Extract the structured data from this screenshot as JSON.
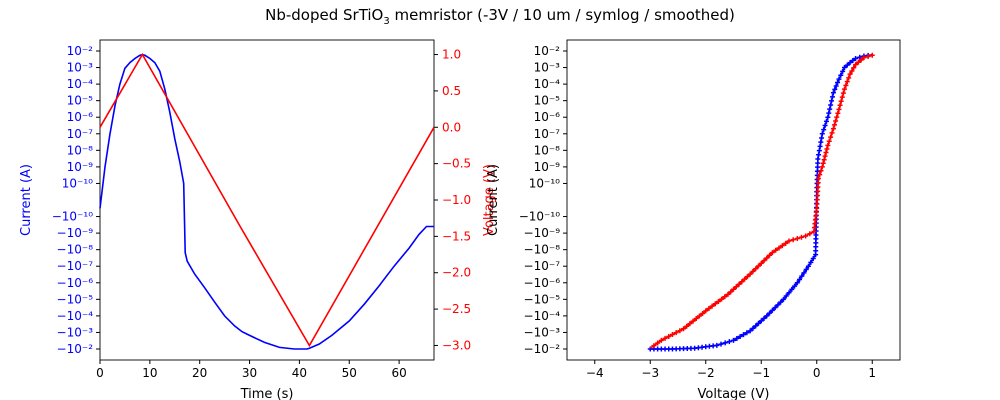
{
  "figure": {
    "title_main": "Nb-doped SrTiO",
    "title_sub": "3",
    "title_rest": " memristor (-3V / 10 um / symlog / smoothed)"
  },
  "colors": {
    "current": "#0000ff",
    "voltage": "#ff0000",
    "axis": "#000000"
  },
  "chart_data": [
    {
      "type": "line",
      "title": "",
      "xlabel": "Time (s)",
      "ylabel_left": "Current (A)",
      "ylabel_right": "Voltage (V)",
      "xlim": [
        0,
        67
      ],
      "xticks": [
        "0",
        "10",
        "20",
        "30",
        "40",
        "50",
        "60"
      ],
      "y_left_scale": "symlog",
      "y_left_ticks": [
        "10⁻²",
        "10⁻³",
        "10⁻⁴",
        "10⁻⁵",
        "10⁻⁶",
        "10⁻⁷",
        "10⁻⁸",
        "10⁻⁹",
        "10⁻¹⁰",
        "−10⁻¹⁰",
        "−10⁻⁹",
        "−10⁻⁸",
        "−10⁻⁷",
        "−10⁻⁶",
        "−10⁻⁵",
        "−10⁻⁴",
        "−10⁻³",
        "−10⁻²"
      ],
      "y_right_lim": [
        -3.2,
        1.2
      ],
      "y_right_ticks": [
        "1.0",
        "0.5",
        "0.0",
        "−0.5",
        "−1.0",
        "−1.5",
        "−2.0",
        "−2.5",
        "−3.0"
      ],
      "series": [
        {
          "name": "Current (A)",
          "axis": "left",
          "x": [
            0,
            1,
            2,
            3,
            4,
            5,
            6,
            7,
            8,
            8.5,
            9,
            10,
            11,
            12,
            13,
            14,
            15,
            16,
            16.8,
            17.1,
            17.5,
            19,
            21,
            23,
            25,
            27,
            28.5,
            30,
            33,
            36,
            39,
            41.5,
            42,
            44,
            46.5,
            50,
            53,
            56,
            59,
            62,
            64,
            65.5,
            67
          ],
          "y": [
            -5e-11,
            1e-09,
            1e-07,
            5e-06,
            0.0001,
            0.0009,
            0.002,
            0.0035,
            0.0055,
            0.006,
            0.0055,
            0.0035,
            0.002,
            0.0006,
            5e-05,
            2e-06,
            5e-08,
            2e-09,
            1e-10,
            -1.5e-08,
            -5e-08,
            -3e-07,
            -2e-06,
            -1.5e-05,
            -0.0001,
            -0.0004,
            -0.0009,
            -0.0015,
            -0.004,
            -0.008,
            -0.01,
            -0.01,
            -0.009,
            -0.005,
            -0.0015,
            -0.0002,
            -2e-05,
            -1.5e-06,
            -1e-07,
            -8e-09,
            -1.2e-09,
            -4e-10,
            -4e-10
          ]
        },
        {
          "name": "Voltage (V)",
          "axis": "right",
          "x": [
            0,
            8.5,
            28,
            42,
            67
          ],
          "y": [
            0,
            1.0,
            -1.35,
            -3.0,
            0
          ]
        }
      ]
    },
    {
      "type": "line",
      "title": "",
      "xlabel": "Voltage (V)",
      "ylabel": "Current (A)",
      "xlim": [
        -4.5,
        1.5
      ],
      "xticks": [
        "−4",
        "−3",
        "−2",
        "−1",
        "0",
        "1"
      ],
      "y_scale": "symlog",
      "yticks": [
        "10⁻²",
        "10⁻³",
        "10⁻⁴",
        "10⁻⁵",
        "10⁻⁶",
        "10⁻⁷",
        "10⁻⁸",
        "10⁻⁹",
        "10⁻¹⁰",
        "−10⁻¹⁰",
        "−10⁻⁹",
        "−10⁻⁸",
        "−10⁻⁷",
        "−10⁻⁶",
        "−10⁻⁵",
        "−10⁻⁴",
        "−10⁻³",
        "−10⁻²"
      ],
      "series": [
        {
          "color": "#0000ff",
          "x": [
            -3.0,
            -2.6,
            -2.2,
            -1.8,
            -1.5,
            -1.2,
            -0.9,
            -0.6,
            -0.35,
            -0.15,
            -0.02,
            0.0,
            0.02,
            0.1,
            0.2,
            0.3,
            0.4,
            0.5,
            0.6,
            0.7,
            0.85,
            1.0
          ],
          "y": [
            -0.01,
            -0.01,
            -0.009,
            -0.006,
            -0.003,
            -0.0008,
            -0.0001,
            -1e-05,
            -1e-06,
            -1e-07,
            -2e-08,
            5e-11,
            3e-09,
            1e-07,
            1e-06,
            3e-05,
            0.0002,
            0.001,
            0.002,
            0.0035,
            0.005,
            0.006
          ]
        },
        {
          "color": "#ff0000",
          "x": [
            1.0,
            0.85,
            0.7,
            0.6,
            0.5,
            0.4,
            0.3,
            0.2,
            0.1,
            0.03,
            0.0,
            -0.05,
            -0.2,
            -0.5,
            -0.8,
            -1.2,
            -1.6,
            -2.0,
            -2.4,
            -2.8,
            -3.0
          ],
          "y": [
            0.0055,
            0.004,
            0.0015,
            0.0004,
            5e-05,
            3e-06,
            2e-07,
            2e-08,
            1e-09,
            2e-10,
            -5e-11,
            -8e-10,
            -1.5e-09,
            -3e-09,
            -1.5e-08,
            -3e-07,
            -5e-06,
            -5e-05,
            -0.0006,
            -0.003,
            -0.009
          ]
        }
      ]
    }
  ]
}
